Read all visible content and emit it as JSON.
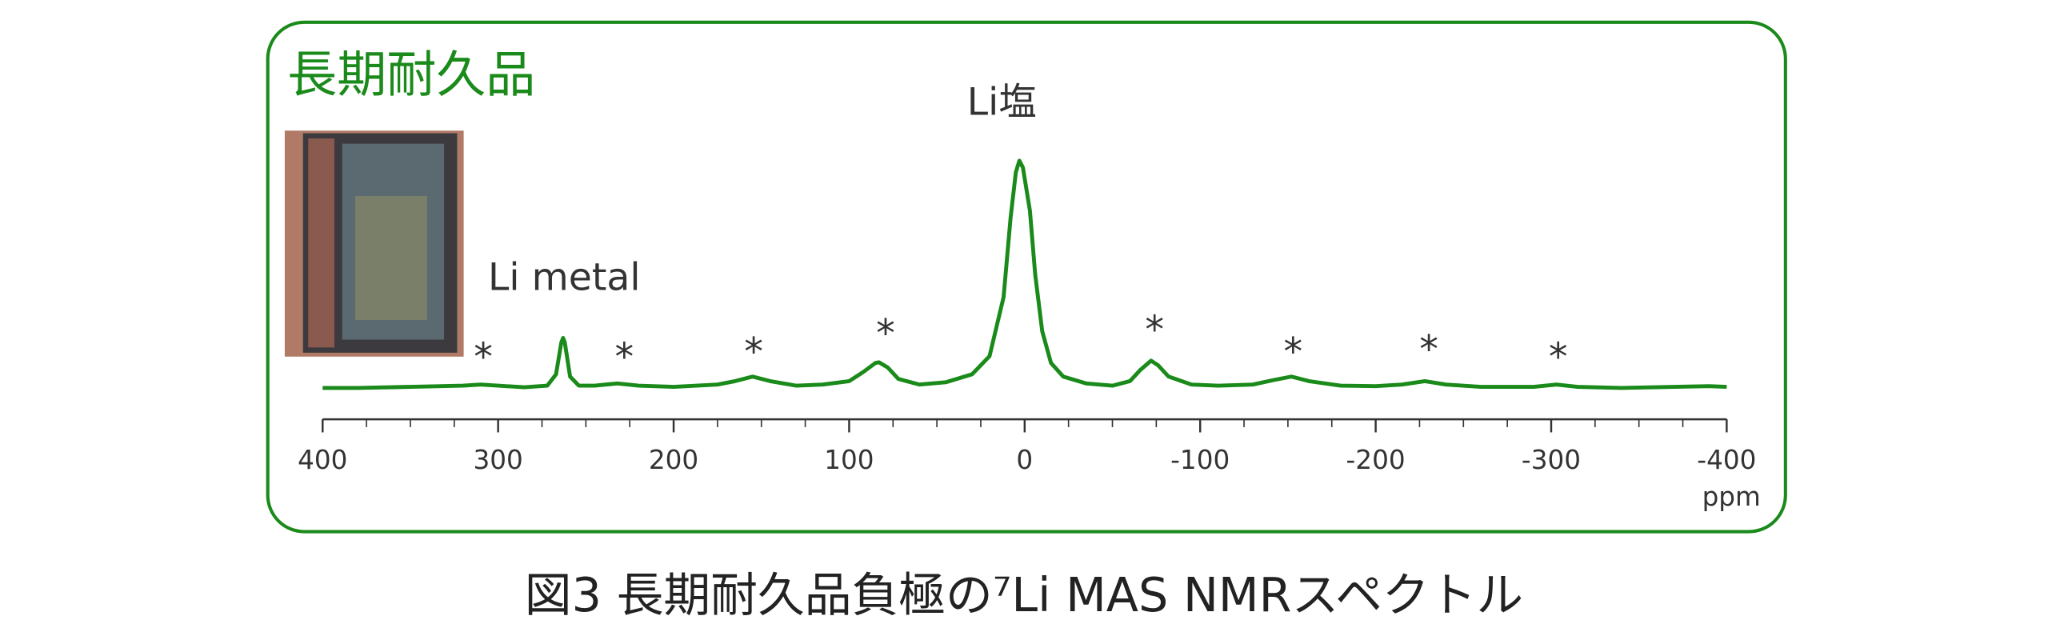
{
  "chart_data": {
    "type": "line",
    "title": "長期耐久品",
    "caption": "図3  長期耐久品負極の⁷Li MAS NMRスペクトル",
    "x_label": "ppm",
    "annotations": [
      "Li塩",
      "Li metal",
      "*",
      "*",
      "*",
      "*",
      "*",
      "*",
      "*",
      "*"
    ],
    "x": [
      400,
      380,
      350,
      320,
      310,
      300,
      285,
      272,
      267,
      264,
      263,
      262,
      259,
      254,
      245,
      232,
      220,
      200,
      175,
      165,
      155,
      145,
      130,
      115,
      100,
      92,
      85,
      83,
      78,
      72,
      60,
      45,
      30,
      20,
      12,
      8,
      5,
      3,
      1,
      -3,
      -6,
      -10,
      -15,
      -22,
      -35,
      -50,
      -60,
      -66,
      -72,
      -76,
      -82,
      -95,
      -110,
      -130,
      -142,
      -152,
      -162,
      -180,
      -200,
      -215,
      -228,
      -240,
      -260,
      -290,
      -303,
      -315,
      -340,
      -370,
      -390,
      -400
    ],
    "series": [
      {
        "color": "#1a8a1a",
        "values": [
          0,
          0,
          0.5,
          1,
          1.5,
          1,
          0.3,
          1,
          6,
          20,
          22,
          20,
          5,
          1,
          1,
          2,
          1,
          0.5,
          1.5,
          3,
          5,
          3,
          1,
          1.5,
          3,
          7,
          11,
          11.3,
          9,
          4,
          1.5,
          2.5,
          6,
          14,
          40,
          75,
          95,
          100,
          97,
          78,
          50,
          25,
          11,
          5,
          2,
          1,
          3,
          8,
          12,
          10,
          5,
          1.5,
          1,
          1.5,
          3.5,
          5,
          3,
          1,
          0.8,
          1.5,
          3,
          1.5,
          0.5,
          0.5,
          1.5,
          0.5,
          0,
          0.5,
          0.8,
          0.5
        ]
      }
    ],
    "xlim": [
      400,
      -400
    ],
    "ylim": [
      0,
      100
    ],
    "xticks": [
      400,
      300,
      200,
      100,
      0,
      -100,
      -200,
      -300,
      -400
    ],
    "xminorticks": [
      375,
      350,
      325,
      275,
      250,
      225,
      175,
      150,
      125,
      75,
      50,
      25,
      -25,
      -50,
      -75,
      -125,
      -150,
      -175,
      -225,
      -250,
      -275,
      -325,
      -350,
      -375
    ]
  }
}
